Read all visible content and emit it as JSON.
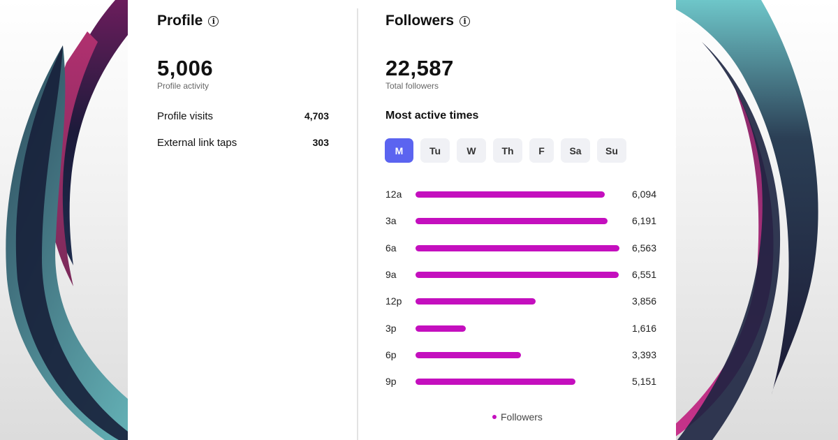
{
  "theme": {
    "accent": "#5b64f0",
    "bar_color": "#c40fbe"
  },
  "profile": {
    "title": "Profile",
    "info_icon": "ⓘ",
    "activity_total": "5,006",
    "activity_caption": "Profile activity",
    "metrics": [
      {
        "label": "Profile visits",
        "value": "4,703"
      },
      {
        "label": "External link taps",
        "value": "303"
      }
    ]
  },
  "followers": {
    "title": "Followers",
    "info_icon": "ⓘ",
    "total": "22,587",
    "total_caption": "Total followers",
    "most_active_title": "Most active times",
    "days": [
      "M",
      "Tu",
      "W",
      "Th",
      "F",
      "Sa",
      "Su"
    ],
    "selected_day": "M",
    "legend_label": "Followers"
  },
  "chart_data": {
    "type": "bar",
    "orientation": "horizontal",
    "categories": [
      "12a",
      "3a",
      "6a",
      "9a",
      "12p",
      "3p",
      "6p",
      "9p"
    ],
    "series": [
      {
        "name": "Followers",
        "values": [
          6094,
          6191,
          6563,
          6551,
          3856,
          1616,
          3393,
          5151
        ]
      }
    ],
    "value_labels": [
      "6,094",
      "6,191",
      "6,563",
      "6,551",
      "3,856",
      "1,616",
      "3,393",
      "5,151"
    ],
    "xlim": [
      0,
      6563
    ],
    "legend_position": "bottom"
  }
}
